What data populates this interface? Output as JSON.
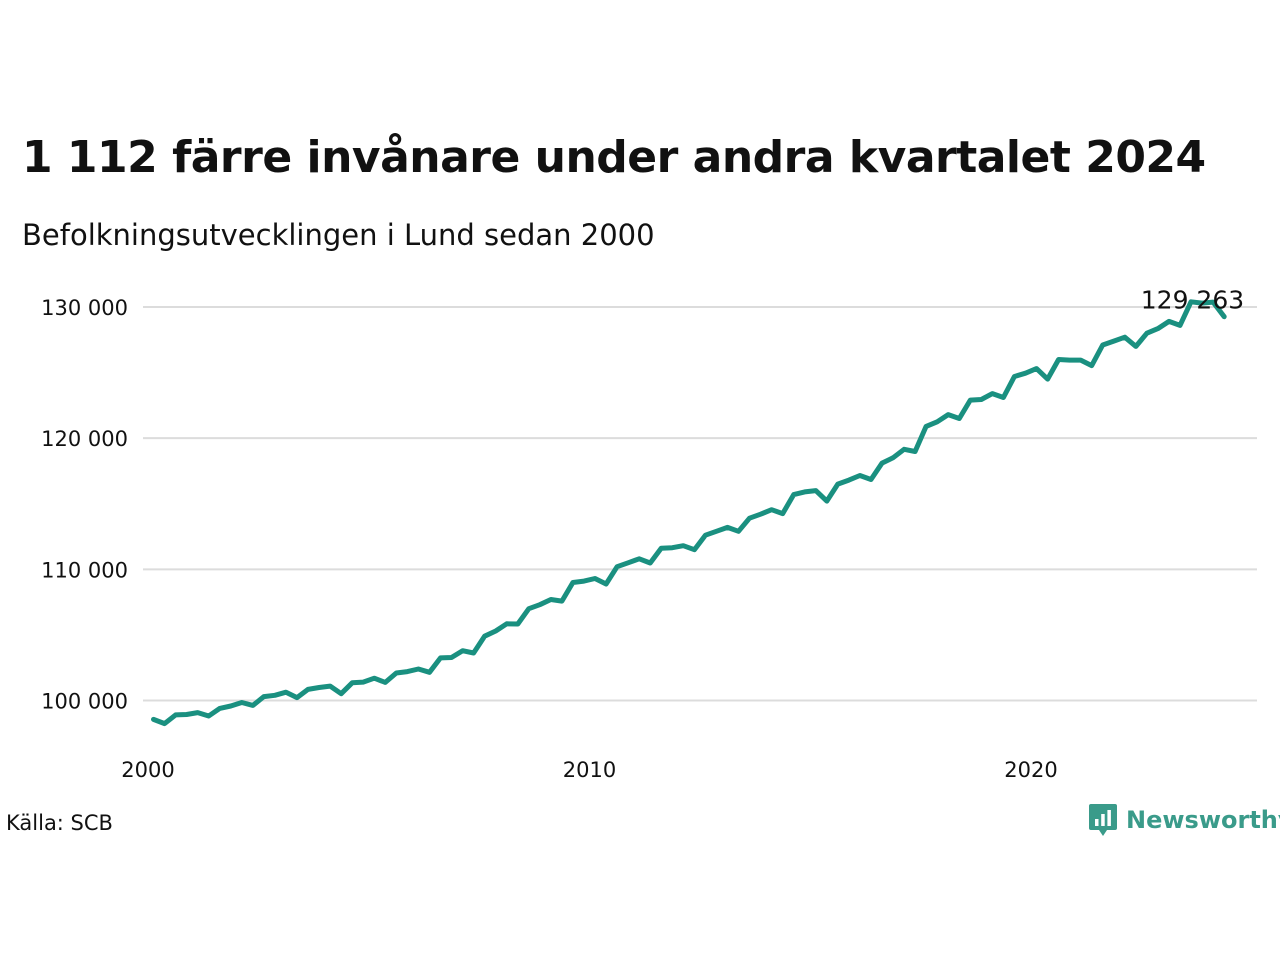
{
  "title": "1 112 färre invånare under andra kvartalet 2024",
  "subtitle": "Befolkningsutvecklingen i Lund sedan 2000",
  "source": "Källa: SCB",
  "brand": {
    "name": "Newsworthy",
    "icon": "newsworthy-logo-icon",
    "color": "#3a9b8a"
  },
  "chart_data": {
    "type": "line",
    "line_color": "#1a9080",
    "grid": true,
    "y_ticks": [
      100000,
      110000,
      120000,
      130000
    ],
    "y_tick_labels": [
      "100 000",
      "110 000",
      "120 000",
      "130 000"
    ],
    "x_ticks": [
      2000,
      2010,
      2020
    ],
    "x_tick_labels": [
      "2000",
      "2010",
      "2020"
    ],
    "ylim": [
      96000,
      131000
    ],
    "xlim": [
      1999.8,
      2025.05
    ],
    "annotation": {
      "text": "129 263",
      "x": 2024.375,
      "y": 129263
    },
    "series": [
      {
        "x_start": 2000.125,
        "x_step": 0.25,
        "values": [
          98560,
          98240,
          98900,
          98930,
          99080,
          98820,
          99400,
          99580,
          99850,
          99630,
          100300,
          100400,
          100630,
          100220,
          100850,
          100990,
          101100,
          100520,
          101350,
          101400,
          101700,
          101380,
          102100,
          102200,
          102400,
          102150,
          103250,
          103280,
          103800,
          103620,
          104900,
          105300,
          105850,
          105830,
          107000,
          107300,
          107700,
          107580,
          109000,
          109100,
          109300,
          108880,
          110200,
          110500,
          110800,
          110480,
          111600,
          111650,
          111800,
          111500,
          112600,
          112900,
          113200,
          112900,
          113900,
          114200,
          114550,
          114250,
          115700,
          115900,
          116000,
          115200,
          116500,
          116800,
          117150,
          116850,
          118100,
          118500,
          119150,
          118980,
          120900,
          121250,
          121800,
          121500,
          122900,
          122950,
          123400,
          123100,
          124700,
          124950,
          125300,
          124500,
          126000,
          125950,
          125950,
          125530,
          127100,
          127400,
          127700,
          127000,
          128000,
          128350,
          128900,
          128600,
          130400,
          130300,
          130375,
          129263
        ]
      }
    ]
  }
}
